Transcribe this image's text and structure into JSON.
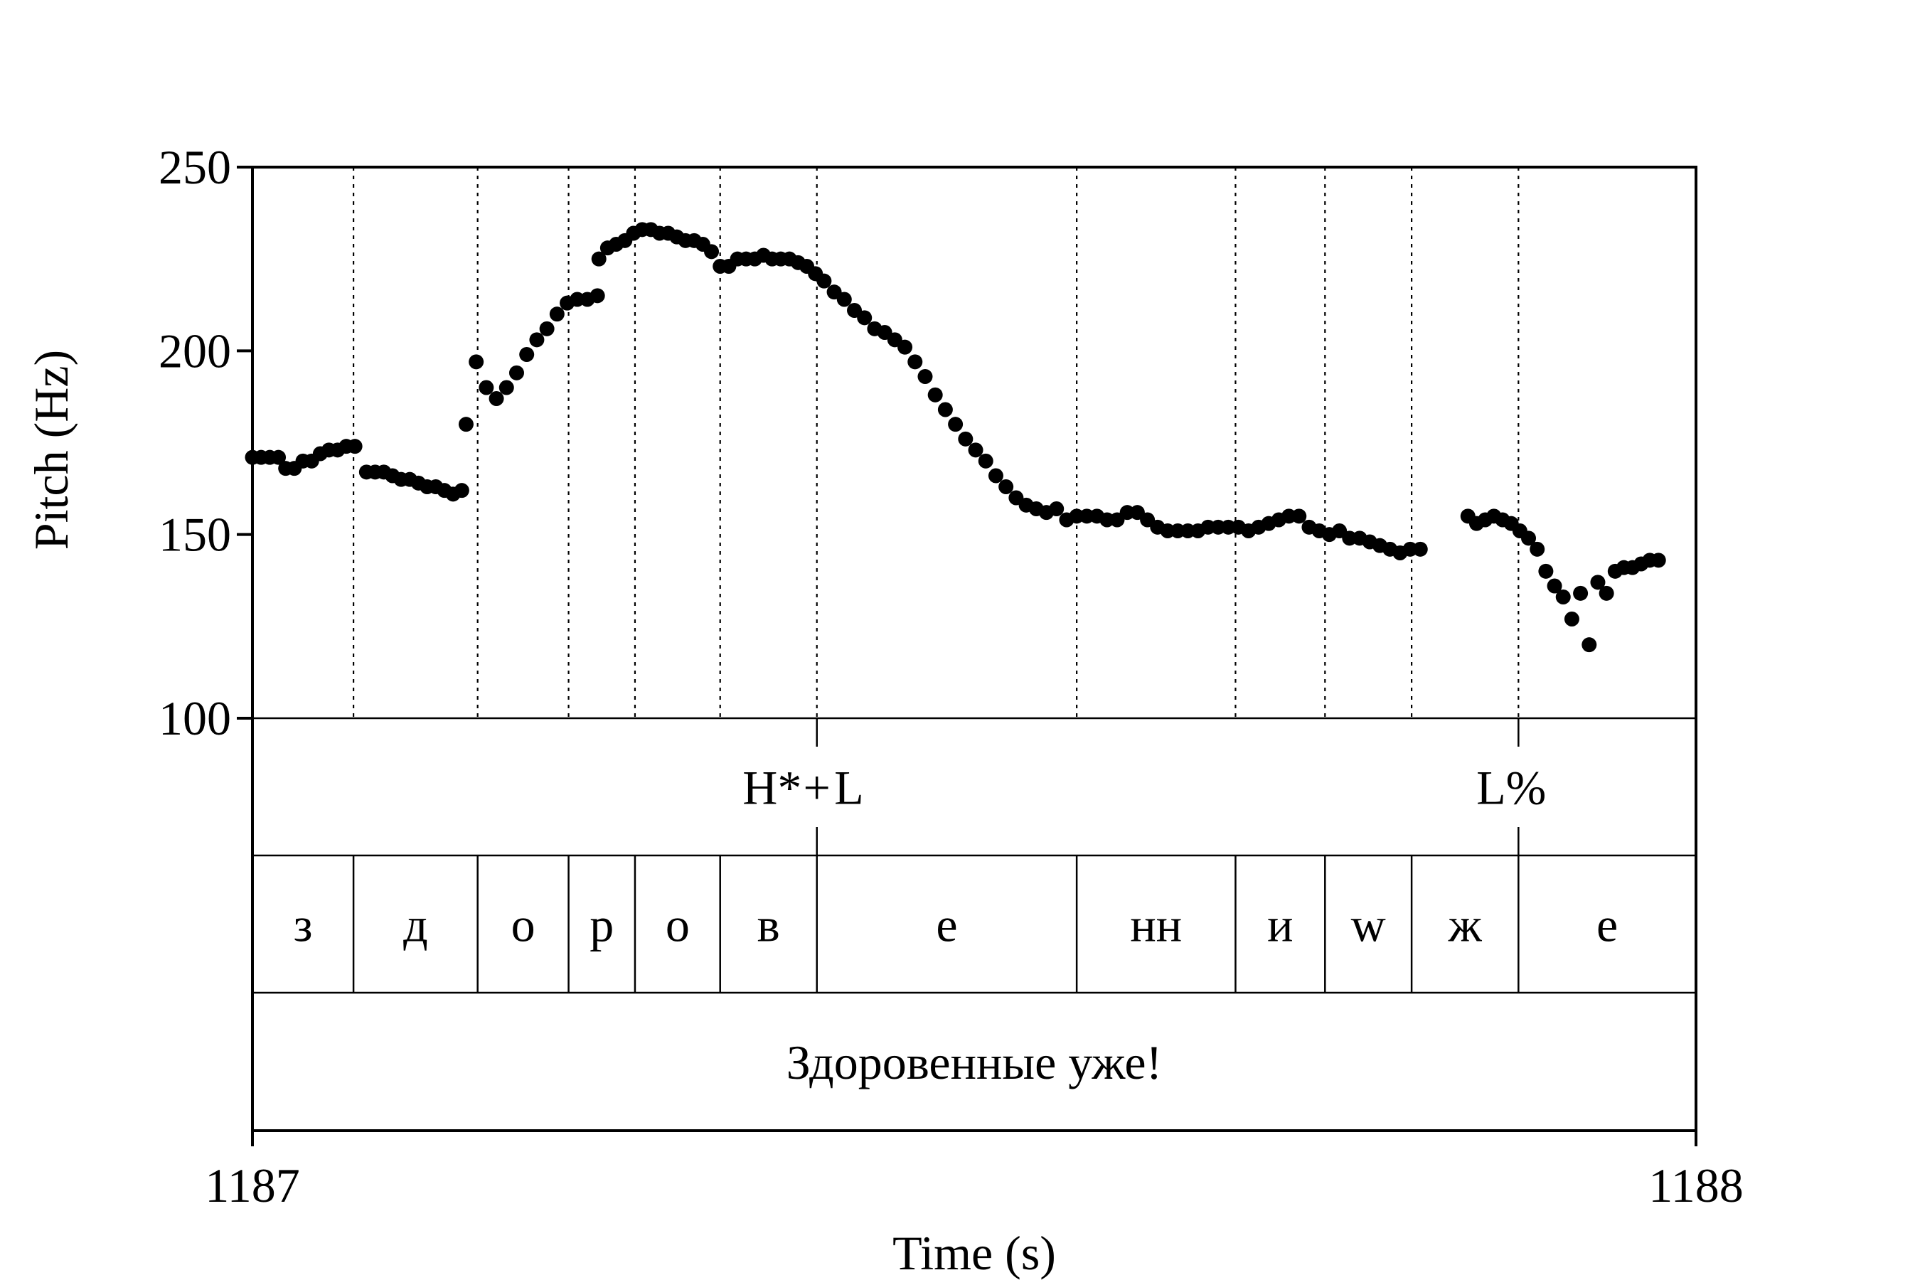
{
  "chart_data": {
    "type": "scatter",
    "xlabel": "Time (s)",
    "ylabel": "Pitch (Hz)",
    "xlim": [
      1187,
      1188
    ],
    "ylim": [
      100,
      250
    ],
    "xticks": [
      "1187",
      "1188"
    ],
    "yticks": [
      100,
      150,
      200,
      250
    ],
    "ytick_labels": [
      "100",
      "150",
      "200",
      "250"
    ],
    "grid": false,
    "boundaries": [
      1187.07,
      1187.156,
      1187.219,
      1187.265,
      1187.324,
      1187.391,
      1187.571,
      1187.681,
      1187.743,
      1187.803,
      1187.877
    ],
    "tone_tier": {
      "boundaries": [
        1187.391,
        1187.877
      ],
      "labels": [
        {
          "text": "H*",
          "t": 1187.36,
          "align": "middle"
        },
        {
          "text": "+",
          "t": 1187.391,
          "align": "middle"
        },
        {
          "text": "L",
          "t": 1187.403,
          "align": "start"
        },
        {
          "text": "L%",
          "t": 1187.872,
          "align": "middle"
        }
      ]
    },
    "segment_tier": {
      "boundaries": [
        1187.07,
        1187.156,
        1187.219,
        1187.265,
        1187.324,
        1187.391,
        1187.571,
        1187.681,
        1187.743,
        1187.803,
        1187.877
      ],
      "labels": [
        "з",
        "д",
        "о",
        "р",
        "о",
        "в",
        "е",
        "нн",
        "и",
        "w",
        "ж",
        "е"
      ]
    },
    "utterance_tier": {
      "text": "Здоровенные уже!"
    },
    "series": [
      {
        "points": [
          [
            1187.0,
            171
          ],
          [
            1187.006,
            171
          ],
          [
            1187.012,
            171
          ],
          [
            1187.018,
            171
          ],
          [
            1187.023,
            168
          ],
          [
            1187.029,
            168
          ],
          [
            1187.035,
            170
          ],
          [
            1187.041,
            170
          ],
          [
            1187.047,
            172
          ],
          [
            1187.053,
            173
          ],
          [
            1187.059,
            173
          ],
          [
            1187.065,
            174
          ],
          [
            1187.071,
            174
          ],
          [
            1187.079,
            167
          ],
          [
            1187.085,
            167
          ],
          [
            1187.091,
            167
          ],
          [
            1187.097,
            166
          ],
          [
            1187.103,
            165
          ],
          [
            1187.109,
            165
          ],
          [
            1187.115,
            164
          ],
          [
            1187.121,
            163
          ],
          [
            1187.127,
            163
          ],
          [
            1187.133,
            162
          ],
          [
            1187.139,
            161
          ],
          [
            1187.145,
            162
          ],
          [
            1187.148,
            180
          ],
          [
            1187.155,
            197
          ],
          [
            1187.162,
            190
          ],
          [
            1187.169,
            187
          ],
          [
            1187.176,
            190
          ],
          [
            1187.183,
            194
          ],
          [
            1187.19,
            199
          ],
          [
            1187.197,
            203
          ],
          [
            1187.204,
            206
          ],
          [
            1187.211,
            210
          ],
          [
            1187.218,
            213
          ],
          [
            1187.225,
            214
          ],
          [
            1187.232,
            214
          ],
          [
            1187.239,
            215
          ],
          [
            1187.24,
            225
          ],
          [
            1187.246,
            228
          ],
          [
            1187.252,
            229
          ],
          [
            1187.258,
            230
          ],
          [
            1187.264,
            232
          ],
          [
            1187.27,
            233
          ],
          [
            1187.276,
            233
          ],
          [
            1187.282,
            232
          ],
          [
            1187.288,
            232
          ],
          [
            1187.294,
            231
          ],
          [
            1187.3,
            230
          ],
          [
            1187.306,
            230
          ],
          [
            1187.312,
            229
          ],
          [
            1187.318,
            227
          ],
          [
            1187.324,
            223
          ],
          [
            1187.33,
            223
          ],
          [
            1187.336,
            225
          ],
          [
            1187.342,
            225
          ],
          [
            1187.348,
            225
          ],
          [
            1187.354,
            226
          ],
          [
            1187.36,
            225
          ],
          [
            1187.366,
            225
          ],
          [
            1187.372,
            225
          ],
          [
            1187.378,
            224
          ],
          [
            1187.384,
            223
          ],
          [
            1187.39,
            221
          ],
          [
            1187.396,
            219
          ],
          [
            1187.403,
            216
          ],
          [
            1187.41,
            214
          ],
          [
            1187.417,
            211
          ],
          [
            1187.424,
            209
          ],
          [
            1187.431,
            206
          ],
          [
            1187.438,
            205
          ],
          [
            1187.445,
            203
          ],
          [
            1187.452,
            201
          ],
          [
            1187.459,
            197
          ],
          [
            1187.466,
            193
          ],
          [
            1187.473,
            188
          ],
          [
            1187.48,
            184
          ],
          [
            1187.487,
            180
          ],
          [
            1187.494,
            176
          ],
          [
            1187.501,
            173
          ],
          [
            1187.508,
            170
          ],
          [
            1187.515,
            166
          ],
          [
            1187.522,
            163
          ],
          [
            1187.529,
            160
          ],
          [
            1187.536,
            158
          ],
          [
            1187.543,
            157
          ],
          [
            1187.55,
            156
          ],
          [
            1187.557,
            157
          ],
          [
            1187.564,
            154
          ],
          [
            1187.571,
            155
          ],
          [
            1187.578,
            155
          ],
          [
            1187.585,
            155
          ],
          [
            1187.592,
            154
          ],
          [
            1187.599,
            154
          ],
          [
            1187.606,
            156
          ],
          [
            1187.613,
            156
          ],
          [
            1187.62,
            154
          ],
          [
            1187.627,
            152
          ],
          [
            1187.634,
            151
          ],
          [
            1187.641,
            151
          ],
          [
            1187.648,
            151
          ],
          [
            1187.655,
            151
          ],
          [
            1187.662,
            152
          ],
          [
            1187.669,
            152
          ],
          [
            1187.676,
            152
          ],
          [
            1187.683,
            152
          ],
          [
            1187.69,
            151
          ],
          [
            1187.697,
            152
          ],
          [
            1187.704,
            153
          ],
          [
            1187.711,
            154
          ],
          [
            1187.718,
            155
          ],
          [
            1187.725,
            155
          ],
          [
            1187.732,
            152
          ],
          [
            1187.739,
            151
          ],
          [
            1187.746,
            150
          ],
          [
            1187.753,
            151
          ],
          [
            1187.76,
            149
          ],
          [
            1187.767,
            149
          ],
          [
            1187.774,
            148
          ],
          [
            1187.781,
            147
          ],
          [
            1187.788,
            146
          ],
          [
            1187.795,
            145
          ],
          [
            1187.802,
            146
          ],
          [
            1187.809,
            146
          ],
          [
            1187.842,
            155
          ],
          [
            1187.848,
            153
          ],
          [
            1187.854,
            154
          ],
          [
            1187.86,
            155
          ],
          [
            1187.866,
            154
          ],
          [
            1187.872,
            153
          ],
          [
            1187.878,
            151
          ],
          [
            1187.884,
            149
          ],
          [
            1187.89,
            146
          ],
          [
            1187.896,
            140
          ],
          [
            1187.902,
            136
          ],
          [
            1187.908,
            133
          ],
          [
            1187.914,
            127
          ],
          [
            1187.92,
            134
          ],
          [
            1187.926,
            120
          ],
          [
            1187.932,
            137
          ],
          [
            1187.938,
            134
          ],
          [
            1187.944,
            140
          ],
          [
            1187.95,
            141
          ],
          [
            1187.956,
            141
          ],
          [
            1187.962,
            142
          ],
          [
            1187.968,
            143
          ],
          [
            1187.974,
            143
          ]
        ]
      }
    ]
  }
}
